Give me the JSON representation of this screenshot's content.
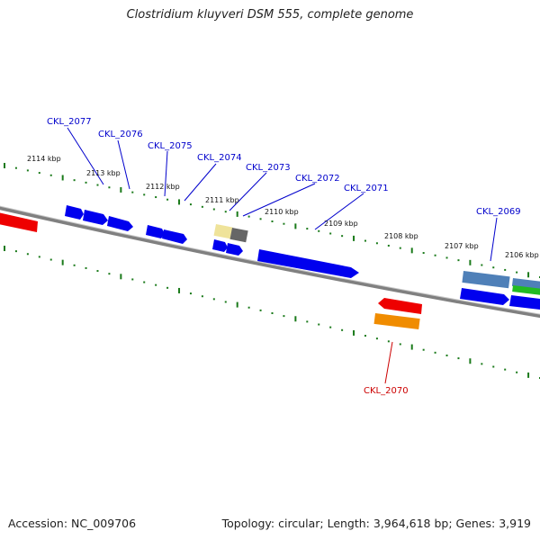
{
  "title": "Clostridium kluyveri DSM 555, complete genome",
  "footer": {
    "accession": "Accession: NC_009706",
    "summary": "Topology: circular; Length: 3,964,618 bp; Genes: 3,919"
  },
  "scale_labels": [
    "2114 kbp",
    "2113 kbp",
    "2112 kbp",
    "2111 kbp",
    "2110 kbp",
    "2109 kbp",
    "2108 kbp",
    "2107 kbp",
    "2106 kbp"
  ],
  "gene_labels": [
    {
      "text": "CKL_2077",
      "strand": "forward"
    },
    {
      "text": "CKL_2076",
      "strand": "forward"
    },
    {
      "text": "CKL_2075",
      "strand": "forward"
    },
    {
      "text": "CKL_2074",
      "strand": "forward"
    },
    {
      "text": "CKL_2073",
      "strand": "forward"
    },
    {
      "text": "CKL_2072",
      "strand": "forward"
    },
    {
      "text": "CKL_2071",
      "strand": "forward"
    },
    {
      "text": "CKL_2069",
      "strand": "forward"
    },
    {
      "text": "CKL_2070",
      "strand": "reverse"
    }
  ],
  "colors": {
    "forward_label": "#0000cc",
    "reverse_label": "#cc0000",
    "backbone": "#808080",
    "tick": "#1a7a1a",
    "forward_gene": "#0000ee",
    "reverse_gene": "#ee0000"
  }
}
